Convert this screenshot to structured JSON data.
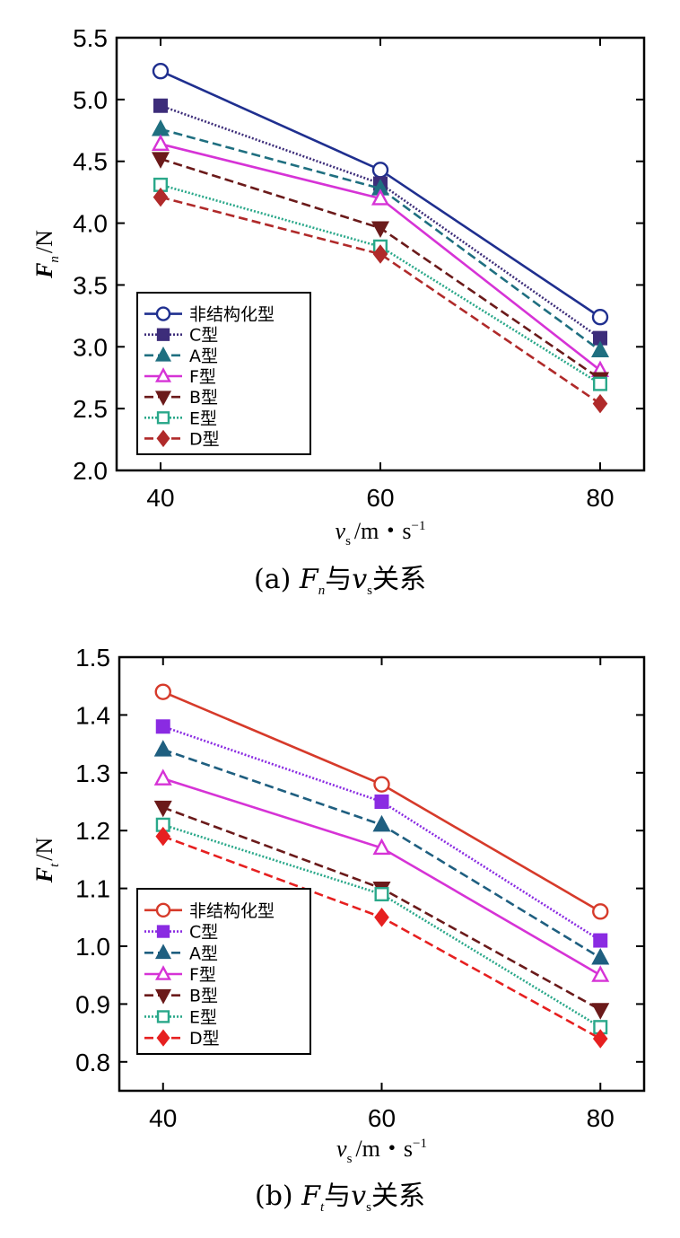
{
  "chart_data": [
    {
      "type": "line",
      "caption_label": "(a)",
      "caption_rel": "与",
      "caption_tail": "关系",
      "ylabel_main": "F",
      "ylabel_sub": "n",
      "ylabel_unit": "/N",
      "xlabel_main": "v",
      "xlabel_sub": "s",
      "xlabel_unit": "/m・s",
      "xlabel_exp": "−1",
      "x": [
        40,
        60,
        80
      ],
      "xlim": [
        36,
        84
      ],
      "ylim": [
        2.0,
        5.5
      ],
      "yticks": [
        "2.0",
        "2.5",
        "3.0",
        "3.5",
        "4.0",
        "4.5",
        "5.0",
        "5.5"
      ],
      "xticks": [
        "40",
        "60",
        "80"
      ],
      "legend_position": "bottom-left",
      "series": [
        {
          "name": "非结构化型",
          "values": [
            5.23,
            4.43,
            3.24
          ],
          "color": "#1f2f8f",
          "marker": "circle",
          "filled": false,
          "dash": ""
        },
        {
          "name": "C型",
          "values": [
            4.95,
            4.32,
            3.07
          ],
          "color": "#3d2d7a",
          "marker": "square",
          "filled": true,
          "dash": "2,2"
        },
        {
          "name": "A型",
          "values": [
            4.76,
            4.28,
            2.97
          ],
          "color": "#1f6f80",
          "marker": "triangle-up",
          "filled": true,
          "dash": "10,5"
        },
        {
          "name": "F型",
          "values": [
            4.64,
            4.2,
            2.81
          ],
          "color": "#d633d6",
          "marker": "triangle-up",
          "filled": false,
          "dash": ""
        },
        {
          "name": "B型",
          "values": [
            4.52,
            3.96,
            2.74
          ],
          "color": "#6b1a1a",
          "marker": "triangle-down",
          "filled": true,
          "dash": "10,5"
        },
        {
          "name": "E型",
          "values": [
            4.31,
            3.81,
            2.7
          ],
          "color": "#2aa88a",
          "marker": "square",
          "filled": false,
          "dash": "2,2"
        },
        {
          "name": "D型",
          "values": [
            4.21,
            3.75,
            2.54
          ],
          "color": "#b02a2a",
          "marker": "diamond",
          "filled": true,
          "dash": "10,5"
        }
      ]
    },
    {
      "type": "line",
      "caption_label": "(b)",
      "caption_rel": "与",
      "caption_tail": "关系",
      "ylabel_main": "F",
      "ylabel_sub": "t",
      "ylabel_unit": "/N",
      "xlabel_main": "v",
      "xlabel_sub": "s",
      "xlabel_unit": "/m・s",
      "xlabel_exp": "−1",
      "x": [
        40,
        60,
        80
      ],
      "xlim": [
        36,
        84
      ],
      "ylim": [
        0.75,
        1.5
      ],
      "yticks": [
        "0.8",
        "0.9",
        "1.0",
        "1.1",
        "1.2",
        "1.3",
        "1.4",
        "1.5"
      ],
      "xticks": [
        "40",
        "60",
        "80"
      ],
      "legend_position": "bottom-left",
      "series": [
        {
          "name": "非结构化型",
          "values": [
            1.44,
            1.28,
            1.06
          ],
          "color": "#d63a2a",
          "marker": "circle",
          "filled": false,
          "dash": ""
        },
        {
          "name": "C型",
          "values": [
            1.38,
            1.25,
            1.01
          ],
          "color": "#8a2be2",
          "marker": "square",
          "filled": true,
          "dash": "2,2"
        },
        {
          "name": "A型",
          "values": [
            1.34,
            1.21,
            0.98
          ],
          "color": "#1f5f80",
          "marker": "triangle-up",
          "filled": true,
          "dash": "10,5"
        },
        {
          "name": "F型",
          "values": [
            1.29,
            1.17,
            0.95
          ],
          "color": "#d633d6",
          "marker": "triangle-up",
          "filled": false,
          "dash": ""
        },
        {
          "name": "B型",
          "values": [
            1.24,
            1.1,
            0.89
          ],
          "color": "#6b1a1a",
          "marker": "triangle-down",
          "filled": true,
          "dash": "10,5"
        },
        {
          "name": "E型",
          "values": [
            1.21,
            1.09,
            0.86
          ],
          "color": "#2aa88a",
          "marker": "square",
          "filled": false,
          "dash": "2,2"
        },
        {
          "name": "D型",
          "values": [
            1.19,
            1.05,
            0.84
          ],
          "color": "#e62020",
          "marker": "diamond",
          "filled": true,
          "dash": "10,5"
        }
      ]
    }
  ]
}
